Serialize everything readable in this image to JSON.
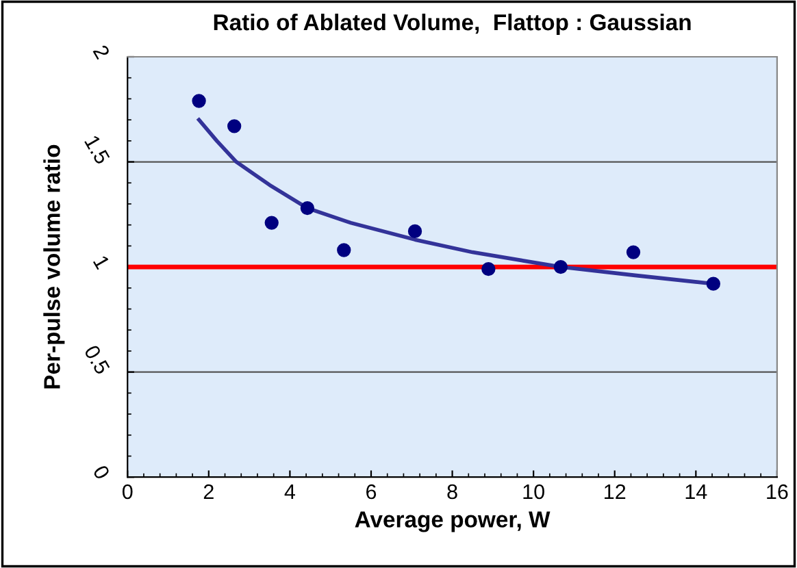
{
  "chart_data": {
    "type": "scatter",
    "title": "Ratio of Ablated Volume,  Flattop : Gaussian",
    "xlabel": "Average power, W",
    "ylabel": "Per-pulse volume ratio",
    "series": [
      {
        "color": "#000080",
        "x": [
          1.76,
          2.63,
          3.55,
          4.43,
          5.33,
          7.08,
          8.89,
          10.67,
          12.46,
          14.43
        ],
        "values": [
          1.79,
          1.67,
          1.21,
          1.28,
          1.08,
          1.17,
          0.99,
          1.0,
          1.07,
          0.92
        ]
      },
      {
        "type": "line",
        "marker": "none",
        "color": "#333399",
        "x": [
          1.76,
          2.2,
          2.68,
          3.5,
          4.43,
          5.5,
          7.08,
          8.5,
          10.67,
          12.5,
          14.43
        ],
        "values": [
          1.7,
          1.6,
          1.5,
          1.39,
          1.28,
          1.21,
          1.13,
          1.07,
          1.0,
          0.96,
          0.92
        ]
      }
    ],
    "ref_lines": [
      {
        "axis": "y",
        "value": 1,
        "color": "#ff0000"
      }
    ],
    "xlim": [
      0,
      16
    ],
    "xticks": [
      0,
      2,
      4,
      6,
      8,
      10,
      12,
      14,
      16
    ],
    "ylim": [
      0,
      2
    ],
    "yticks": [
      0,
      0.5,
      1,
      1.5,
      2
    ],
    "grid": "y",
    "marker": "circle"
  }
}
